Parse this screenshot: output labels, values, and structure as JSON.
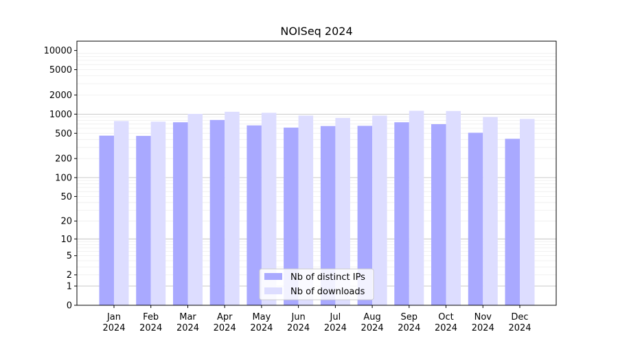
{
  "chart_data": {
    "type": "bar",
    "title": "NOISeq 2024",
    "xlabel": "",
    "ylabel": "",
    "yscale": "symlog",
    "ylim": [
      0,
      14000
    ],
    "y_ticks": [
      0,
      1,
      2,
      5,
      10,
      20,
      50,
      100,
      200,
      500,
      1000,
      2000,
      5000,
      10000
    ],
    "grid": "horizontal",
    "legend_position": "bottom-center",
    "categories": [
      "Jan\n2024",
      "Feb\n2024",
      "Mar\n2024",
      "Apr\n2024",
      "May\n2024",
      "Jun\n2024",
      "Jul\n2024",
      "Aug\n2024",
      "Sep\n2024",
      "Oct\n2024",
      "Nov\n2024",
      "Dec\n2024"
    ],
    "series": [
      {
        "name": "Nb of distinct IPs",
        "color": "#a9a9ff",
        "values": [
          460,
          455,
          745,
          810,
          665,
          615,
          650,
          655,
          745,
          695,
          510,
          410
        ]
      },
      {
        "name": "Nb of downloads",
        "color": "#ddddff",
        "values": [
          780,
          760,
          1010,
          1090,
          1050,
          950,
          870,
          950,
          1130,
          1120,
          900,
          840
        ]
      }
    ]
  }
}
